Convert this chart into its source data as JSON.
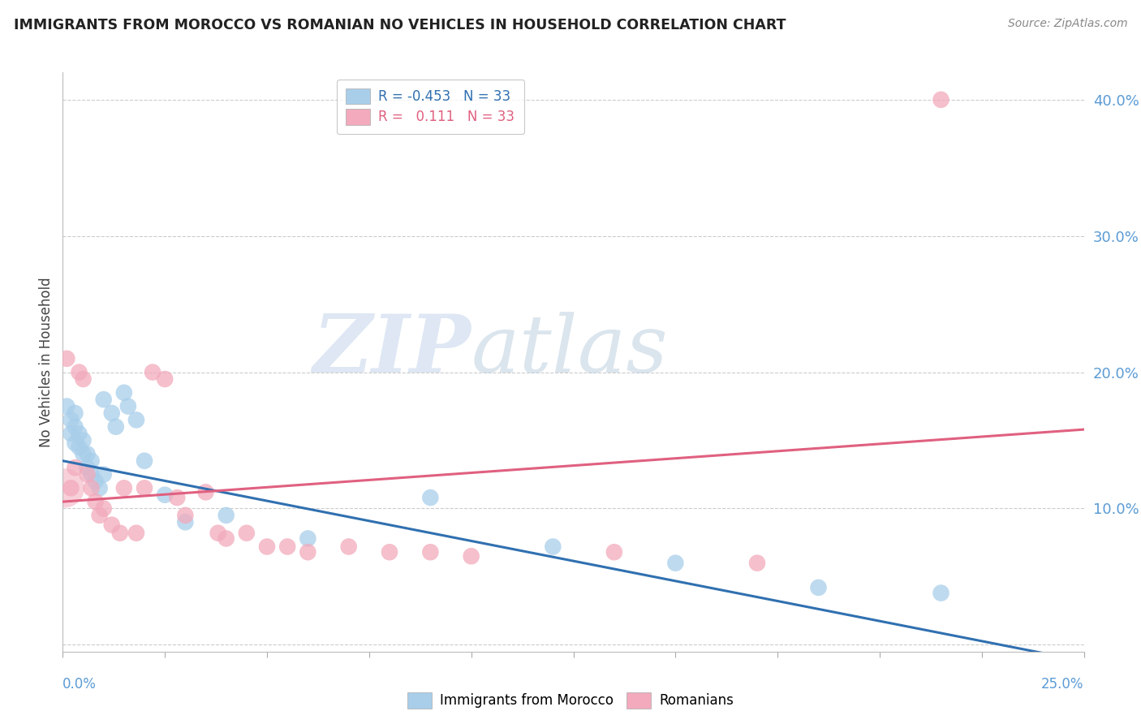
{
  "title": "IMMIGRANTS FROM MOROCCO VS ROMANIAN NO VEHICLES IN HOUSEHOLD CORRELATION CHART",
  "source": "Source: ZipAtlas.com",
  "ylabel": "No Vehicles in Household",
  "xlim": [
    0.0,
    0.25
  ],
  "ylim": [
    -0.005,
    0.42
  ],
  "watermark_zip": "ZIP",
  "watermark_atlas": "atlas",
  "blue_color": "#A8CEEA",
  "pink_color": "#F2AABC",
  "blue_line_color": "#3070B0",
  "pink_line_color": "#E06080",
  "blue_line": [
    [
      0.0,
      0.135
    ],
    [
      0.25,
      -0.012
    ]
  ],
  "pink_line": [
    [
      0.0,
      0.105
    ],
    [
      0.25,
      0.158
    ]
  ],
  "blue_scatter": [
    [
      0.001,
      0.175
    ],
    [
      0.002,
      0.155
    ],
    [
      0.002,
      0.165
    ],
    [
      0.003,
      0.148
    ],
    [
      0.003,
      0.16
    ],
    [
      0.003,
      0.17
    ],
    [
      0.004,
      0.145
    ],
    [
      0.004,
      0.155
    ],
    [
      0.005,
      0.14
    ],
    [
      0.005,
      0.15
    ],
    [
      0.006,
      0.13
    ],
    [
      0.006,
      0.14
    ],
    [
      0.007,
      0.125
    ],
    [
      0.007,
      0.135
    ],
    [
      0.008,
      0.12
    ],
    [
      0.009,
      0.115
    ],
    [
      0.01,
      0.18
    ],
    [
      0.01,
      0.125
    ],
    [
      0.012,
      0.17
    ],
    [
      0.013,
      0.16
    ],
    [
      0.015,
      0.185
    ],
    [
      0.016,
      0.175
    ],
    [
      0.018,
      0.165
    ],
    [
      0.02,
      0.135
    ],
    [
      0.025,
      0.11
    ],
    [
      0.03,
      0.09
    ],
    [
      0.04,
      0.095
    ],
    [
      0.06,
      0.078
    ],
    [
      0.09,
      0.108
    ],
    [
      0.12,
      0.072
    ],
    [
      0.15,
      0.06
    ],
    [
      0.185,
      0.042
    ],
    [
      0.215,
      0.038
    ]
  ],
  "pink_scatter": [
    [
      0.001,
      0.21
    ],
    [
      0.002,
      0.115
    ],
    [
      0.003,
      0.13
    ],
    [
      0.004,
      0.2
    ],
    [
      0.005,
      0.195
    ],
    [
      0.006,
      0.125
    ],
    [
      0.007,
      0.115
    ],
    [
      0.008,
      0.105
    ],
    [
      0.009,
      0.095
    ],
    [
      0.01,
      0.1
    ],
    [
      0.012,
      0.088
    ],
    [
      0.014,
      0.082
    ],
    [
      0.015,
      0.115
    ],
    [
      0.018,
      0.082
    ],
    [
      0.02,
      0.115
    ],
    [
      0.022,
      0.2
    ],
    [
      0.025,
      0.195
    ],
    [
      0.028,
      0.108
    ],
    [
      0.03,
      0.095
    ],
    [
      0.035,
      0.112
    ],
    [
      0.038,
      0.082
    ],
    [
      0.04,
      0.078
    ],
    [
      0.045,
      0.082
    ],
    [
      0.05,
      0.072
    ],
    [
      0.055,
      0.072
    ],
    [
      0.06,
      0.068
    ],
    [
      0.07,
      0.072
    ],
    [
      0.08,
      0.068
    ],
    [
      0.09,
      0.068
    ],
    [
      0.1,
      0.065
    ],
    [
      0.135,
      0.068
    ],
    [
      0.17,
      0.06
    ],
    [
      0.215,
      0.4
    ]
  ]
}
